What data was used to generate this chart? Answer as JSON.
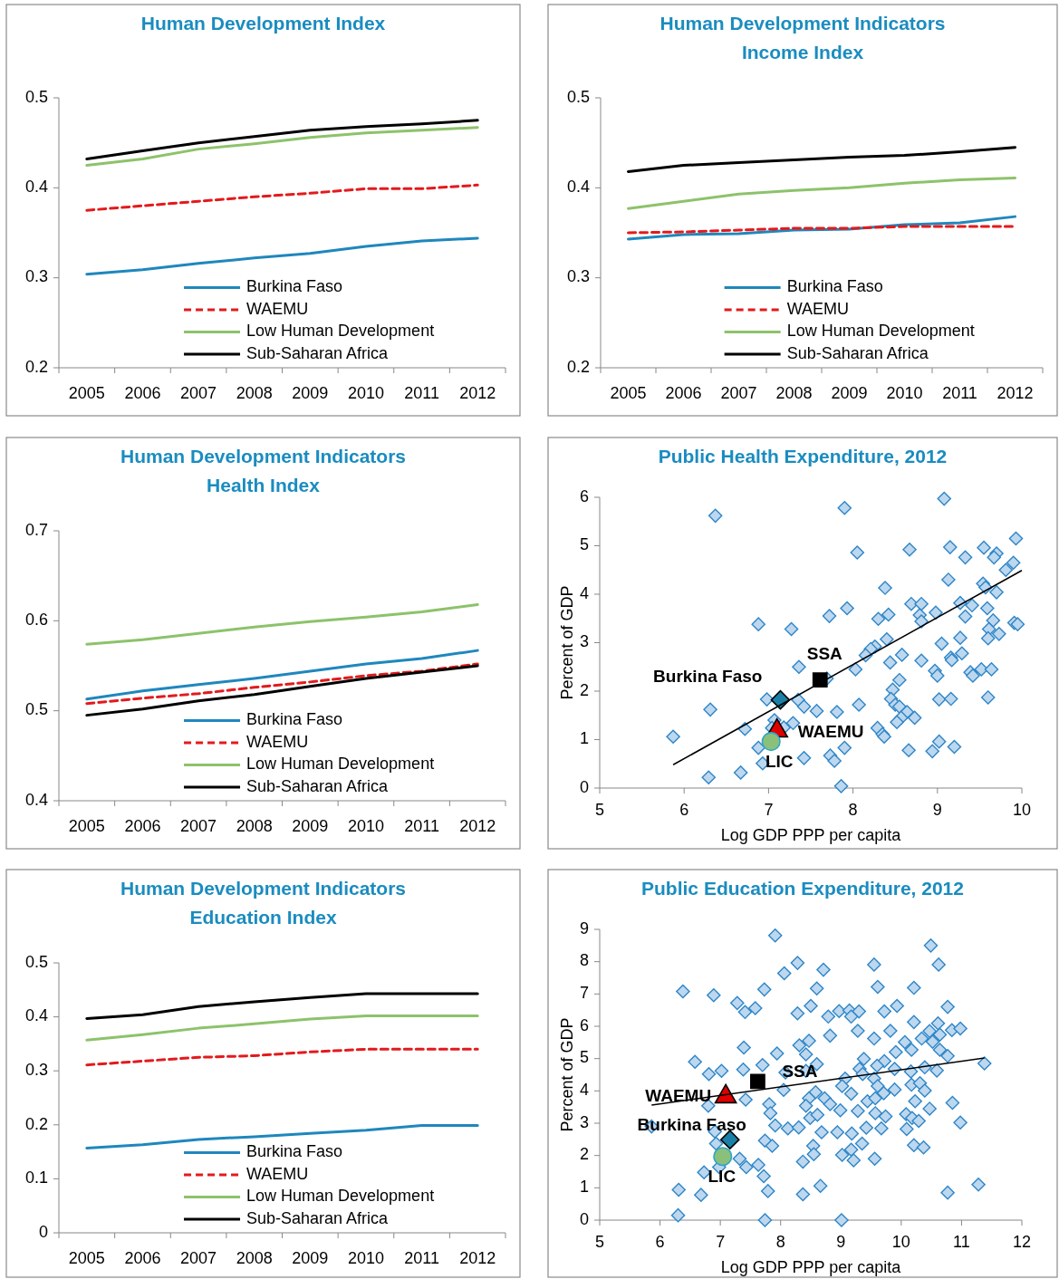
{
  "chart_data": [
    {
      "type": "line",
      "title": "Human Development Index",
      "categories": [
        "2005",
        "2006",
        "2007",
        "2008",
        "2009",
        "2010",
        "2011",
        "2012"
      ],
      "ylim": [
        0.2,
        0.5
      ],
      "yticks": [
        0.2,
        0.3,
        0.4,
        0.5
      ],
      "legend": "bottom",
      "series": [
        {
          "name": "Burkina Faso",
          "color": "#1f87bd",
          "values": [
            0.304,
            0.309,
            0.316,
            0.322,
            0.327,
            0.335,
            0.341,
            0.344
          ]
        },
        {
          "name": "WAEMU",
          "color": "#e31a1c",
          "line_style": "dashed",
          "values": [
            0.375,
            0.38,
            0.385,
            0.39,
            0.394,
            0.399,
            0.399,
            0.403
          ]
        },
        {
          "name": "Low Human Development",
          "color": "#8dc26b",
          "values": [
            0.425,
            0.432,
            0.443,
            0.449,
            0.456,
            0.461,
            0.464,
            0.467
          ]
        },
        {
          "name": "Sub-Saharan Africa",
          "color": "#000000",
          "values": [
            0.432,
            0.441,
            0.45,
            0.457,
            0.464,
            0.468,
            0.471,
            0.475
          ]
        }
      ]
    },
    {
      "type": "line",
      "title": "Human Development Indicators",
      "subtitle": "Income Index",
      "categories": [
        "2005",
        "2006",
        "2007",
        "2008",
        "2009",
        "2010",
        "2011",
        "2012"
      ],
      "ylim": [
        0.2,
        0.5
      ],
      "yticks": [
        0.2,
        0.3,
        0.4,
        0.5
      ],
      "legend": "bottom",
      "series": [
        {
          "name": "Burkina Faso",
          "color": "#1f87bd",
          "values": [
            0.343,
            0.348,
            0.349,
            0.353,
            0.354,
            0.359,
            0.361,
            0.368
          ]
        },
        {
          "name": "WAEMU",
          "color": "#e31a1c",
          "line_style": "dashed",
          "values": [
            0.35,
            0.351,
            0.353,
            0.355,
            0.355,
            0.357,
            0.357,
            0.357
          ]
        },
        {
          "name": "Low Human Development",
          "color": "#8dc26b",
          "values": [
            0.377,
            0.385,
            0.393,
            0.397,
            0.4,
            0.405,
            0.409,
            0.411
          ]
        },
        {
          "name": "Sub-Saharan Africa",
          "color": "#000000",
          "values": [
            0.418,
            0.425,
            0.428,
            0.431,
            0.434,
            0.436,
            0.44,
            0.445
          ]
        }
      ]
    },
    {
      "type": "line",
      "title": "Human Development Indicators",
      "subtitle": "Health Index",
      "categories": [
        "2005",
        "2006",
        "2007",
        "2008",
        "2009",
        "2010",
        "2011",
        "2012"
      ],
      "ylim": [
        0.4,
        0.7
      ],
      "yticks": [
        0.4,
        0.5,
        0.6,
        0.7
      ],
      "legend": "bottom",
      "series": [
        {
          "name": "Burkina Faso",
          "color": "#1f87bd",
          "values": [
            0.513,
            0.522,
            0.529,
            0.536,
            0.544,
            0.552,
            0.558,
            0.567
          ]
        },
        {
          "name": "WAEMU",
          "color": "#e31a1c",
          "line_style": "dashed",
          "values": [
            0.508,
            0.514,
            0.519,
            0.526,
            0.532,
            0.539,
            0.544,
            0.552
          ]
        },
        {
          "name": "Low Human Development",
          "color": "#8dc26b",
          "values": [
            0.574,
            0.579,
            0.586,
            0.593,
            0.599,
            0.604,
            0.61,
            0.618
          ]
        },
        {
          "name": "Sub-Saharan Africa",
          "color": "#000000",
          "values": [
            0.495,
            0.502,
            0.511,
            0.518,
            0.527,
            0.536,
            0.543,
            0.55
          ]
        }
      ]
    },
    {
      "type": "scatter",
      "title": "Public Health Expenditure,  2012",
      "xlabel": "Log GDP PPP per capita",
      "ylabel": "Percent of GDP",
      "xlim": [
        5,
        10
      ],
      "xticks": [
        5,
        6,
        7,
        8,
        9,
        10
      ],
      "ylim": [
        0,
        6
      ],
      "yticks": [
        0,
        1,
        2,
        3,
        4,
        5,
        6
      ],
      "series": [
        {
          "color": "#bdd7ee",
          "marker": "diamond",
          "x": [
            6.37,
            7.9,
            9.08,
            9.93,
            8.05,
            8.67,
            9.15,
            9.33,
            9.55,
            9.7,
            9.67,
            9.9,
            9.81,
            9.13,
            8.38,
            9.54,
            9.57,
            9.7,
            8.69,
            8.81,
            9.27,
            9.41,
            7.93,
            8.98,
            9.59,
            7.72,
            8.42,
            8.3,
            8.79,
            8.81,
            9.33,
            9.66,
            9.91,
            9.95,
            6.88,
            7.27,
            9.61,
            9.73,
            9.6,
            9.27,
            8.4,
            9.05,
            8.26,
            8.21,
            8.15,
            8.58,
            9.29,
            9.16,
            9.17,
            8.81,
            8.44,
            8.03,
            8.97,
            9.0,
            9.39,
            9.42,
            9.52,
            9.64,
            7.36,
            7.69,
            8.55,
            8.47,
            8.45,
            8.5,
            8.55,
            8.64,
            8.57,
            8.52,
            8.73,
            9.02,
            9.16,
            9.6,
            6.98,
            7.35,
            7.42,
            7.57,
            7.81,
            8.07,
            6.31,
            6.72,
            5.87,
            7.07,
            7.04,
            7.18,
            7.29,
            8.29,
            8.35,
            8.37,
            9.02,
            9.2,
            8.66,
            8.94,
            7.9,
            6.88,
            7.42,
            7.73,
            7.78,
            6.93,
            6.29,
            6.67,
            7.86
          ],
          "values": [
            5.62,
            5.78,
            5.97,
            5.15,
            4.86,
            4.92,
            4.97,
            4.76,
            4.96,
            4.84,
            4.76,
            4.65,
            4.5,
            4.3,
            4.13,
            4.22,
            4.14,
            4.04,
            3.8,
            3.8,
            3.82,
            3.77,
            3.71,
            3.62,
            3.71,
            3.55,
            3.58,
            3.49,
            3.57,
            3.44,
            3.54,
            3.46,
            3.41,
            3.38,
            3.38,
            3.28,
            3.28,
            3.18,
            3.09,
            3.1,
            3.07,
            2.98,
            2.92,
            2.87,
            2.74,
            2.75,
            2.78,
            2.69,
            2.64,
            2.63,
            2.59,
            2.45,
            2.42,
            2.32,
            2.39,
            2.32,
            2.45,
            2.45,
            2.5,
            2.26,
            2.23,
            2.03,
            1.84,
            1.72,
            1.68,
            1.57,
            1.45,
            1.36,
            1.45,
            1.83,
            1.84,
            1.87,
            1.83,
            1.82,
            1.68,
            1.59,
            1.57,
            1.72,
            1.62,
            1.22,
            1.06,
            1.4,
            1.24,
            1.25,
            1.34,
            1.24,
            1.11,
            1.06,
            0.96,
            0.85,
            0.78,
            0.76,
            0.83,
            0.83,
            0.62,
            0.67,
            0.56,
            0.51,
            0.22,
            0.32,
            0.04
          ]
        },
        {
          "name": "Burkina Faso",
          "color": "#1b7fa6",
          "marker": "diamond",
          "x": [
            7.14
          ],
          "values": [
            1.82
          ]
        },
        {
          "name": "WAEMU",
          "color": "#e00000",
          "marker": "triangle",
          "x": [
            7.1
          ],
          "values": [
            1.18
          ]
        },
        {
          "name": "SSA",
          "color": "#000000",
          "marker": "square",
          "x": [
            7.61
          ],
          "values": [
            2.23
          ]
        },
        {
          "name": "LIC",
          "color": "#8bc07a",
          "marker": "circle",
          "x": [
            7.03
          ],
          "values": [
            0.96
          ]
        },
        {
          "type": "line",
          "color": "#000000",
          "x": [
            5.87,
            10.0
          ],
          "values": [
            0.48,
            4.49
          ]
        }
      ]
    },
    {
      "type": "line",
      "title": "Human Development Indicators",
      "subtitle": "Education Index",
      "categories": [
        "2005",
        "2006",
        "2007",
        "2008",
        "2009",
        "2010",
        "2011",
        "2012"
      ],
      "ylim": [
        0,
        0.5
      ],
      "yticks": [
        0,
        0.1,
        0.2,
        0.3,
        0.4,
        0.5
      ],
      "legend": "bottom",
      "series": [
        {
          "name": "Burkina Faso",
          "color": "#1f87bd",
          "values": [
            0.157,
            0.163,
            0.173,
            0.178,
            0.184,
            0.19,
            0.199,
            0.199
          ]
        },
        {
          "name": "WAEMU",
          "color": "#e31a1c",
          "line_style": "dashed",
          "values": [
            0.311,
            0.318,
            0.325,
            0.328,
            0.335,
            0.34,
            0.34,
            0.34
          ]
        },
        {
          "name": "Low Human Development",
          "color": "#8dc26b",
          "values": [
            0.357,
            0.367,
            0.379,
            0.387,
            0.396,
            0.402,
            0.402,
            0.402
          ]
        },
        {
          "name": "Sub-Saharan Africa",
          "color": "#000000",
          "values": [
            0.397,
            0.404,
            0.419,
            0.428,
            0.436,
            0.443,
            0.443,
            0.443
          ]
        }
      ]
    },
    {
      "type": "scatter",
      "title": "Public Education Expenditure,  2012",
      "xlabel": "Log GDP PPP per capita",
      "ylabel": "Percent of GDP",
      "xlim": [
        5,
        12
      ],
      "xticks": [
        5,
        6,
        7,
        8,
        9,
        10,
        11,
        12
      ],
      "ylim": [
        0,
        9
      ],
      "yticks": [
        0,
        1,
        2,
        3,
        4,
        5,
        6,
        7,
        8,
        9
      ],
      "series": [
        {
          "color": "#bdd7ee",
          "marker": "diamond",
          "x": [
            7.91,
            10.49,
            8.28,
            9.55,
            10.62,
            8.06,
            8.71,
            6.38,
            6.89,
            7.73,
            8.6,
            9.61,
            10.21,
            7.28,
            7.41,
            7.58,
            8.5,
            8.28,
            9.93,
            10.77,
            8.97,
            9.14,
            9.3,
            8.79,
            9.17,
            9.72,
            10.21,
            10.61,
            10.84,
            10.98,
            9.28,
            9.82,
            10.47,
            8.82,
            9.55,
            10.34,
            10.52,
            10.64,
            10.06,
            10.17,
            10.64,
            10.77,
            7.39,
            7.94,
            8.31,
            8.47,
            8.42,
            9.91,
            9.38,
            9.72,
            9.31,
            9.6,
            9.89,
            10.16,
            10.39,
            10.59,
            11.38,
            6.58,
            6.81,
            7.02,
            7.38,
            7.7,
            8.6,
            8.08,
            8.42,
            9.07,
            9.36,
            9.55,
            9.02,
            9.61,
            10.17,
            10.31,
            9.17,
            9.71,
            9.89,
            10.39,
            8.05,
            8.58,
            8.47,
            8.73,
            8.82,
            9.44,
            9.57,
            10.23,
            10.85,
            7.42,
            6.8,
            7.81,
            7.83,
            8.42,
            8.99,
            9.28,
            9.57,
            9.74,
            10.08,
            10.18,
            10.29,
            10.47,
            10.98,
            5.86,
            6.91,
            7.91,
            8.12,
            8.3,
            8.49,
            8.61,
            8.68,
            8.94,
            9.18,
            9.42,
            9.67,
            10.09,
            10.21,
            10.37,
            9.35,
            8.54,
            8.55,
            9.02,
            9.17,
            9.21,
            9.56,
            8.37,
            7.74,
            7.86,
            6.93,
            7.32,
            7.43,
            7.63,
            7.72,
            6.73,
            6.98,
            7.79,
            8.37,
            8.66,
            6.31,
            6.68,
            10.77,
            11.28,
            6.3,
            7.74,
            9.01
          ],
          "values": [
            8.81,
            8.5,
            7.96,
            7.91,
            7.91,
            7.64,
            7.75,
            7.08,
            6.96,
            7.14,
            7.17,
            7.22,
            7.19,
            6.72,
            6.44,
            6.56,
            6.63,
            6.4,
            6.63,
            6.6,
            6.47,
            6.49,
            6.46,
            6.3,
            6.3,
            6.46,
            6.13,
            6.09,
            5.88,
            5.93,
            5.86,
            5.86,
            5.85,
            5.71,
            5.62,
            5.62,
            5.52,
            5.74,
            5.51,
            5.27,
            5.27,
            5.08,
            5.34,
            5.16,
            5.41,
            5.55,
            5.13,
            5.2,
            4.99,
            4.92,
            4.68,
            4.78,
            4.68,
            4.6,
            4.73,
            4.63,
            4.85,
            4.9,
            4.52,
            4.62,
            4.66,
            4.8,
            4.83,
            4.57,
            4.62,
            4.38,
            4.52,
            4.38,
            4.15,
            4.15,
            4.19,
            4.24,
            3.91,
            3.93,
            4.04,
            4.01,
            4.03,
            3.96,
            3.77,
            3.77,
            3.59,
            3.68,
            3.77,
            3.68,
            3.63,
            3.73,
            3.54,
            3.59,
            3.31,
            3.54,
            3.4,
            3.38,
            3.31,
            3.21,
            3.28,
            3.16,
            3.07,
            3.45,
            3.02,
            2.9,
            2.74,
            2.93,
            2.84,
            2.87,
            3.16,
            3.26,
            2.72,
            2.72,
            2.68,
            2.86,
            2.84,
            2.82,
            2.32,
            2.25,
            2.37,
            2.3,
            2.04,
            2.02,
            2.18,
            1.85,
            1.9,
            1.81,
            2.46,
            2.3,
            2.37,
            1.9,
            1.64,
            1.71,
            1.36,
            1.48,
            1.64,
            0.9,
            0.8,
            1.06,
            0.94,
            0.78,
            0.85,
            1.1,
            0.15,
            0,
            0
          ]
        },
        {
          "name": "Burkina Faso",
          "color": "#1b7fa6",
          "marker": "diamond",
          "x": [
            7.16
          ],
          "values": [
            2.49
          ]
        },
        {
          "name": "WAEMU",
          "color": "#e00000",
          "marker": "triangle",
          "x": [
            7.09
          ],
          "values": [
            3.82
          ]
        },
        {
          "name": "SSA",
          "color": "#000000",
          "marker": "square",
          "x": [
            7.62
          ],
          "values": [
            4.29
          ]
        },
        {
          "name": "LIC",
          "color": "#8bc07a",
          "marker": "circle",
          "x": [
            7.04
          ],
          "values": [
            1.97
          ]
        },
        {
          "type": "line",
          "color": "#000000",
          "x": [
            5.86,
            11.38
          ],
          "values": [
            3.56,
            5.02
          ]
        }
      ]
    }
  ]
}
